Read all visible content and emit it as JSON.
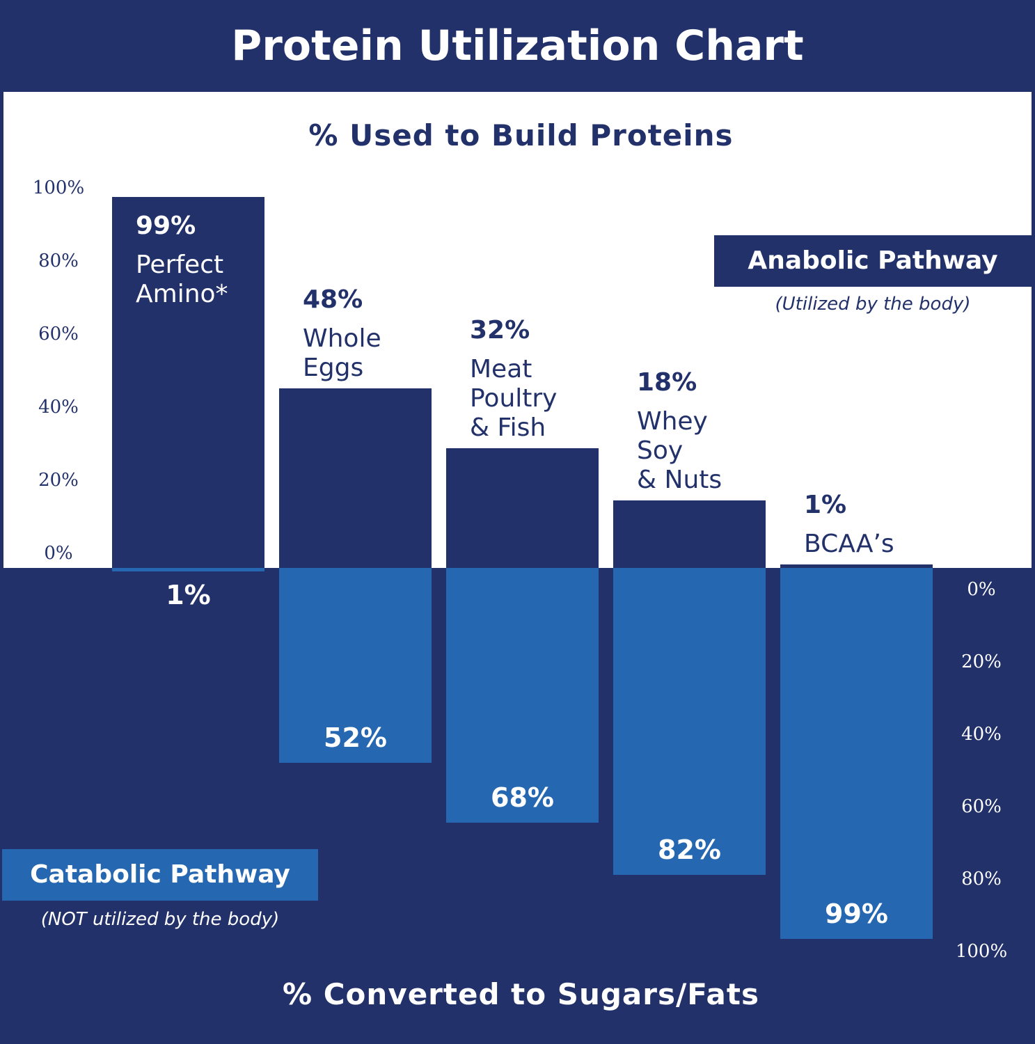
{
  "chart_data": {
    "type": "bar",
    "title": "Protein Utilization Chart",
    "upper_axis_title": "% Used to Build Proteins",
    "lower_axis_title": "% Converted to Sugars/Fats",
    "categories": [
      {
        "pct_label": "99%",
        "lines": [
          "Perfect",
          "Amino*"
        ]
      },
      {
        "pct_label": "48%",
        "lines": [
          "Whole",
          "Eggs"
        ]
      },
      {
        "pct_label": "32%",
        "lines": [
          "Meat",
          "Poultry",
          "& Fish"
        ]
      },
      {
        "pct_label": "18%",
        "lines": [
          "Whey",
          "Soy",
          "& Nuts"
        ]
      },
      {
        "pct_label": "1%",
        "lines": [
          "BCAA’s"
        ]
      }
    ],
    "series": [
      {
        "name": "Anabolic Pathway",
        "subtitle": "(Utilized by the body)",
        "values": [
          99,
          48,
          32,
          18,
          1
        ],
        "labels": [
          "99%",
          "48%",
          "32%",
          "18%",
          "1%"
        ],
        "color": "#22316a"
      },
      {
        "name": "Catabolic Pathway",
        "subtitle": "(NOT utilized by the body)",
        "values": [
          1,
          52,
          68,
          82,
          99
        ],
        "labels": [
          "1%",
          "52%",
          "68%",
          "82%",
          "99%"
        ],
        "color": "#2567b0"
      }
    ],
    "upper_ticks": [
      "0%",
      "20%",
      "40%",
      "60%",
      "80%",
      "100%"
    ],
    "lower_ticks": [
      "0%",
      "20%",
      "40%",
      "60%",
      "80%",
      "100%"
    ],
    "ylim": [
      0,
      100
    ],
    "grid": false,
    "colors": {
      "navy": "#22316a",
      "blue": "#2567b0",
      "white": "#ffffff"
    }
  }
}
